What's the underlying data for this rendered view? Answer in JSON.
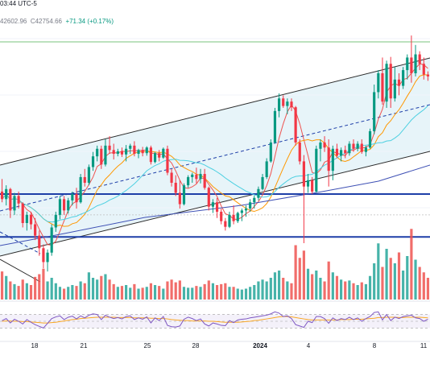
{
  "header": {
    "time_fragment": "03:44 UTC-5",
    "ohlc_fragment": "42602.96",
    "close_label": "C",
    "close_value": "42754.66",
    "change": "+71.34 (+0.17%)"
  },
  "colors": {
    "up": "#089981",
    "down": "#f23645",
    "vol_up": "#26a69a",
    "vol_down": "#ef5350",
    "ma_fast": "#ef5350",
    "ma_mid": "#ff9800",
    "ma_slow": "#4dd0e1",
    "ma_long": "#3f51b5",
    "channel": "#2b2b2b",
    "channel_fill": "#e3f2f8",
    "hline": "#1e3fa8",
    "rsi_line": "#7e57c2",
    "rsi_ma": "#f9a825"
  },
  "chart_data": {
    "type": "candlestick",
    "x_tick_labels": [
      "18",
      "21",
      "25",
      "28",
      "2024",
      "4",
      "8",
      "11"
    ],
    "horizontal_levels": [
      41380,
      40700
    ],
    "bars": [
      [
        41420,
        41620,
        41250,
        41300,
        31
      ],
      [
        41300,
        41520,
        41200,
        41460,
        26
      ],
      [
        41460,
        41480,
        41000,
        41120,
        20
      ],
      [
        41120,
        41400,
        41050,
        41350,
        17
      ],
      [
        41350,
        41420,
        41150,
        41230,
        15
      ],
      [
        41230,
        41250,
        40850,
        40920,
        22
      ],
      [
        40920,
        41100,
        40800,
        41050,
        18
      ],
      [
        41050,
        41100,
        40820,
        40900,
        16
      ],
      [
        40900,
        41000,
        40650,
        40720,
        25
      ],
      [
        40720,
        40800,
        40400,
        40520,
        28
      ],
      [
        40520,
        40580,
        40200,
        40300,
        34
      ],
      [
        40300,
        40500,
        40150,
        40450,
        20
      ],
      [
        40450,
        40900,
        40400,
        40850,
        24
      ],
      [
        40850,
        41100,
        40780,
        41050,
        18
      ],
      [
        41050,
        41350,
        40980,
        41300,
        14
      ],
      [
        41300,
        41350,
        41050,
        41120,
        12
      ],
      [
        41120,
        41320,
        41070,
        41280,
        14
      ],
      [
        41280,
        41420,
        41200,
        41380,
        16
      ],
      [
        41380,
        41480,
        41150,
        41250,
        15
      ],
      [
        41250,
        41700,
        41230,
        41650,
        20
      ],
      [
        41650,
        41780,
        41500,
        41560,
        18
      ],
      [
        41560,
        41850,
        41520,
        41810,
        30
      ],
      [
        41810,
        42050,
        41750,
        41980,
        24
      ],
      [
        41980,
        42150,
        41900,
        42100,
        22
      ],
      [
        42100,
        42150,
        41780,
        41850,
        26
      ],
      [
        41850,
        42250,
        41820,
        42150,
        28
      ],
      [
        42150,
        42300,
        42020,
        42080,
        22
      ],
      [
        42080,
        42180,
        41930,
        42020,
        17
      ],
      [
        42020,
        42100,
        41980,
        42060,
        14
      ],
      [
        42060,
        42120,
        41970,
        42010,
        15
      ],
      [
        42010,
        42160,
        41900,
        42100,
        16
      ],
      [
        42100,
        42180,
        42020,
        42150,
        13
      ],
      [
        42150,
        42220,
        41980,
        42020,
        17
      ],
      [
        42020,
        42100,
        41950,
        42080,
        12
      ],
      [
        42080,
        42130,
        41980,
        42030,
        13
      ],
      [
        42030,
        42140,
        41990,
        42120,
        14
      ],
      [
        42120,
        42150,
        41850,
        41890,
        18
      ],
      [
        41890,
        42050,
        41870,
        42030,
        16
      ],
      [
        42030,
        42080,
        41900,
        41960,
        15
      ],
      [
        41960,
        42120,
        41940,
        42100,
        12
      ],
      [
        42100,
        42150,
        41680,
        41720,
        20
      ],
      [
        41720,
        41780,
        41500,
        41560,
        22
      ],
      [
        41560,
        41680,
        41350,
        41400,
        19
      ],
      [
        41400,
        41600,
        41150,
        41220,
        21
      ],
      [
        41220,
        41550,
        41200,
        41520,
        14
      ],
      [
        41520,
        41680,
        41480,
        41650,
        13
      ],
      [
        41650,
        41720,
        41560,
        41690,
        13
      ],
      [
        41690,
        41800,
        41550,
        41620,
        15
      ],
      [
        41620,
        41780,
        41550,
        41700,
        14
      ],
      [
        41700,
        41780,
        41450,
        41480,
        17
      ],
      [
        41480,
        41500,
        41120,
        41180,
        21
      ],
      [
        41180,
        41300,
        41080,
        41250,
        18
      ],
      [
        41250,
        41320,
        41000,
        41100,
        16
      ],
      [
        41100,
        41150,
        40900,
        40950,
        17
      ],
      [
        40950,
        41000,
        40800,
        40860,
        18
      ],
      [
        40860,
        41100,
        40840,
        41050,
        14
      ],
      [
        41050,
        41200,
        40900,
        40950,
        14
      ],
      [
        40950,
        41100,
        40920,
        41080,
        12
      ],
      [
        41080,
        41150,
        40950,
        41120,
        11
      ],
      [
        41120,
        41200,
        41020,
        41150,
        12
      ],
      [
        41150,
        41300,
        41100,
        41250,
        14
      ],
      [
        41250,
        41360,
        41150,
        41320,
        16
      ],
      [
        41320,
        41500,
        41280,
        41460,
        20
      ],
      [
        41460,
        41700,
        41440,
        41650,
        22
      ],
      [
        41650,
        41950,
        41620,
        41900,
        20
      ],
      [
        41900,
        42250,
        41880,
        42200,
        24
      ],
      [
        42200,
        42750,
        42180,
        42700,
        30
      ],
      [
        42700,
        42980,
        42600,
        42900,
        32
      ],
      [
        42900,
        42950,
        42750,
        42780,
        24
      ],
      [
        42780,
        42900,
        42650,
        42850,
        20
      ],
      [
        42850,
        42900,
        42700,
        42760,
        18
      ],
      [
        42760,
        42780,
        42150,
        42200,
        60
      ],
      [
        42200,
        42250,
        41850,
        41900,
        46
      ],
      [
        41900,
        42000,
        40600,
        41500,
        54
      ],
      [
        41500,
        41700,
        41400,
        41600,
        34
      ],
      [
        41600,
        41650,
        41380,
        41420,
        28
      ],
      [
        41420,
        42150,
        41400,
        42100,
        32
      ],
      [
        42100,
        42250,
        41900,
        42200,
        24
      ],
      [
        42200,
        42300,
        42050,
        42120,
        20
      ],
      [
        42120,
        42250,
        41500,
        41750,
        42
      ],
      [
        41750,
        42150,
        41600,
        42100,
        30
      ],
      [
        42100,
        42180,
        41950,
        41990,
        26
      ],
      [
        41990,
        42120,
        41900,
        42080,
        22
      ],
      [
        42080,
        42150,
        41950,
        42030,
        20
      ],
      [
        42030,
        42220,
        41990,
        42180,
        21
      ],
      [
        42180,
        42250,
        42050,
        42100,
        18
      ],
      [
        42100,
        42220,
        42060,
        42180,
        16
      ],
      [
        42180,
        42250,
        42020,
        42050,
        19
      ],
      [
        42050,
        42150,
        41980,
        42120,
        17
      ],
      [
        42120,
        42420,
        42100,
        42380,
        26
      ],
      [
        42380,
        43120,
        42330,
        43000,
        40
      ],
      [
        43000,
        43350,
        42900,
        43300,
        62
      ],
      [
        43300,
        43550,
        42800,
        42850,
        36
      ],
      [
        42850,
        43500,
        42750,
        43450,
        56
      ],
      [
        43450,
        43560,
        42750,
        42900,
        46
      ],
      [
        42900,
        43400,
        42850,
        43200,
        40
      ],
      [
        43200,
        43300,
        42950,
        43100,
        52
      ],
      [
        43100,
        43400,
        43050,
        43350,
        32
      ],
      [
        43350,
        43600,
        43200,
        43550,
        48
      ],
      [
        43550,
        43900,
        43150,
        43300,
        78
      ],
      [
        43300,
        43750,
        43250,
        43600,
        44
      ],
      [
        43600,
        43650,
        43350,
        43450,
        36
      ],
      [
        43450,
        43550,
        43200,
        43280,
        30
      ],
      [
        43280,
        43330,
        43180,
        43250,
        24
      ]
    ],
    "rsi": [
      52,
      58,
      45,
      56,
      50,
      42,
      55,
      47,
      40,
      35,
      30,
      44,
      58,
      63,
      66,
      55,
      62,
      65,
      57,
      66,
      60,
      68,
      72,
      70,
      55,
      68,
      62,
      58,
      61,
      57,
      64,
      66,
      55,
      60,
      56,
      63,
      45,
      60,
      52,
      64,
      38,
      34,
      33,
      36,
      56,
      62,
      58,
      52,
      57,
      42,
      36,
      45,
      42,
      38,
      37,
      52,
      46,
      54,
      56,
      57,
      60,
      62,
      64,
      66,
      68,
      72,
      78,
      74,
      64,
      66,
      58,
      40,
      36,
      32,
      50,
      46,
      64,
      64,
      58,
      44,
      60,
      52,
      58,
      55,
      62,
      55,
      60,
      50,
      58,
      64,
      76,
      78,
      54,
      70,
      52,
      62,
      58,
      64,
      66,
      68,
      60,
      58,
      50,
      56
    ],
    "rsi_ma": [
      50,
      51,
      51,
      50,
      50,
      49,
      49,
      48,
      47,
      46,
      45,
      45,
      46,
      47,
      49,
      51,
      53,
      55,
      56,
      58,
      59,
      60,
      61,
      62,
      62,
      62,
      62,
      62,
      61,
      61,
      61,
      61,
      60,
      60,
      60,
      60,
      59,
      59,
      58,
      58,
      57,
      55,
      54,
      53,
      52,
      52,
      51,
      51,
      51,
      51,
      50,
      50,
      49,
      48,
      47,
      47,
      47,
      47,
      48,
      49,
      50,
      52,
      53,
      55,
      57,
      59,
      61,
      63,
      64,
      64,
      63,
      61,
      59,
      57,
      55,
      54,
      54,
      54,
      54,
      54,
      54,
      54,
      55,
      55,
      55,
      56,
      56,
      56,
      57,
      58,
      59,
      61,
      61,
      62,
      62,
      62,
      61,
      61,
      62,
      62,
      62,
      62,
      61,
      60
    ]
  }
}
